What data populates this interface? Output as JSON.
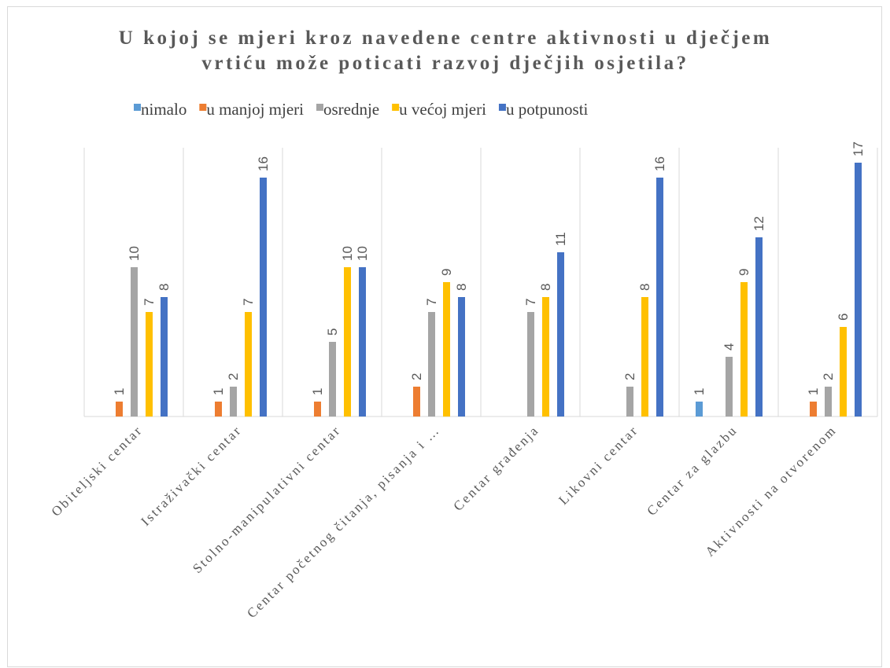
{
  "chart_data": {
    "type": "bar",
    "title": [
      "U kojoj se mjeri kroz navedene centre aktivnosti u dječjem",
      "vrtiću može poticati razvoj dječjih osjetila?"
    ],
    "categories": [
      "Obiteljski centar",
      "Istraživački centar",
      "Stolno-manipulativni centar",
      "Centar početnog čitanja, pisanja i …",
      "Centar građenja",
      "Likovni centar",
      "Centar za glazbu",
      "Aktivnosti na otvorenom"
    ],
    "series": [
      {
        "name": "nimalo",
        "color": "#5b9bd5",
        "values": [
          null,
          null,
          null,
          null,
          null,
          null,
          1,
          null
        ]
      },
      {
        "name": "u manjoj mjeri",
        "color": "#ed7d31",
        "values": [
          1,
          1,
          1,
          2,
          null,
          null,
          null,
          1
        ]
      },
      {
        "name": "osrednje",
        "color": "#a5a5a5",
        "values": [
          10,
          2,
          5,
          7,
          7,
          2,
          4,
          2
        ]
      },
      {
        "name": "u većoj mjeri",
        "color": "#ffc000",
        "values": [
          7,
          7,
          10,
          9,
          8,
          8,
          9,
          6
        ]
      },
      {
        "name": "u potpunosti",
        "color": "#4472c4",
        "values": [
          8,
          16,
          10,
          8,
          11,
          16,
          12,
          17
        ]
      }
    ],
    "ylim": [
      0,
      18
    ],
    "legend": "top"
  }
}
